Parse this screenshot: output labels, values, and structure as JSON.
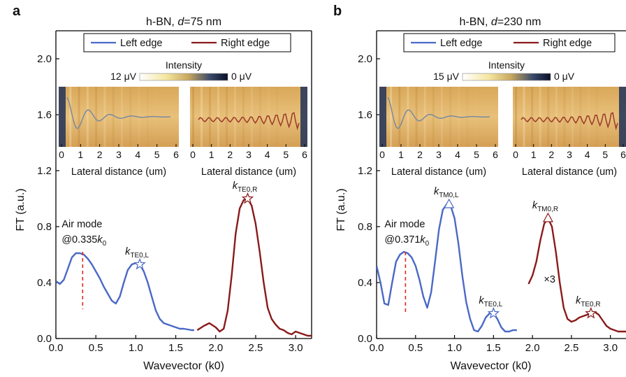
{
  "figure": {
    "panels": [
      {
        "letter": "a",
        "title_main": "h-BN, ",
        "title_var": "d",
        "title_value": "=75 nm"
      },
      {
        "letter": "b",
        "title_main": "h-BN, ",
        "title_var": "d",
        "title_value": "=230 nm"
      }
    ]
  },
  "chart_data": [
    {
      "type": "line",
      "xlabel": "Wavevector (k0)",
      "ylabel": "FT (a.u.)",
      "xlim": [
        0.0,
        3.2
      ],
      "ylim": [
        0.0,
        2.2
      ],
      "x_ticks": [
        "0.0",
        "0.5",
        "1.0",
        "1.5",
        "2.0",
        "2.5",
        "3.0"
      ],
      "y_ticks": [
        "0.0",
        "0.4",
        "0.8",
        "1.2",
        "1.6",
        "2.0"
      ],
      "legend": {
        "placement": "top",
        "entries": [
          "Left edge",
          "Right edge"
        ]
      },
      "series": [
        {
          "name": "Left edge",
          "color": "#4a69c6",
          "x": [
            0.0,
            0.05,
            0.1,
            0.15,
            0.2,
            0.25,
            0.3,
            0.35,
            0.4,
            0.45,
            0.5,
            0.55,
            0.6,
            0.65,
            0.7,
            0.75,
            0.8,
            0.85,
            0.9,
            0.95,
            1.0,
            1.05,
            1.1,
            1.15,
            1.2,
            1.25,
            1.3,
            1.35,
            1.4,
            1.45,
            1.5,
            1.55,
            1.6,
            1.65,
            1.7,
            1.73
          ],
          "y": [
            0.41,
            0.39,
            0.42,
            0.5,
            0.58,
            0.61,
            0.61,
            0.6,
            0.57,
            0.53,
            0.48,
            0.43,
            0.37,
            0.32,
            0.27,
            0.25,
            0.3,
            0.4,
            0.49,
            0.53,
            0.54,
            0.53,
            0.48,
            0.4,
            0.3,
            0.2,
            0.14,
            0.11,
            0.1,
            0.09,
            0.08,
            0.07,
            0.07,
            0.065,
            0.06,
            0.06
          ]
        },
        {
          "name": "Right edge",
          "color": "#8a1a1a",
          "x": [
            1.77,
            1.85,
            1.92,
            2.0,
            2.05,
            2.1,
            2.15,
            2.2,
            2.25,
            2.3,
            2.35,
            2.4,
            2.45,
            2.5,
            2.55,
            2.6,
            2.65,
            2.7,
            2.75,
            2.8,
            2.85,
            2.9,
            2.95,
            3.0,
            3.05,
            3.1,
            3.15,
            3.2
          ],
          "y": [
            0.06,
            0.09,
            0.11,
            0.08,
            0.05,
            0.07,
            0.2,
            0.45,
            0.75,
            0.93,
            0.99,
            1.0,
            0.95,
            0.82,
            0.62,
            0.4,
            0.22,
            0.14,
            0.1,
            0.07,
            0.06,
            0.04,
            0.03,
            0.05,
            0.04,
            0.03,
            0.02,
            0.02
          ]
        }
      ],
      "markers": [
        {
          "shape": "star",
          "x": 1.05,
          "y": 0.53,
          "color": "#4a69c6",
          "label_main": "k",
          "label_sub": "TE0,L"
        },
        {
          "shape": "star",
          "x": 2.4,
          "y": 1.0,
          "color": "#8a1a1a",
          "label_main": "k",
          "label_sub": "TE0,R"
        }
      ],
      "annotation": {
        "line1": "Air mode",
        "line2_pre": "@0.335",
        "line2_k": "k",
        "line2_sub": "0",
        "x": 0.335,
        "y_top": 0.62,
        "y_bottom": 0.21
      },
      "inset": {
        "colorbar_label": "Intensity",
        "colorbar_max": "12 μV",
        "colorbar_min": "0 μV",
        "xlabel_left": "Lateral distance (um)",
        "xlabel_right": "Lateral distance (um)",
        "ticks": [
          "0",
          "1",
          "2",
          "3",
          "4",
          "5",
          "6"
        ]
      }
    },
    {
      "type": "line",
      "xlabel": "Wavevector (k0)",
      "ylabel": "FT (a.u.)",
      "xlim": [
        0.0,
        3.2
      ],
      "ylim": [
        0.0,
        2.2
      ],
      "x_ticks": [
        "0.0",
        "0.5",
        "1.0",
        "1.5",
        "2.0",
        "2.5",
        "3.0"
      ],
      "y_ticks": [
        "0.0",
        "0.4",
        "0.8",
        "1.2",
        "1.6",
        "2.0"
      ],
      "legend": {
        "placement": "top",
        "entries": [
          "Left edge",
          "Right edge"
        ]
      },
      "series": [
        {
          "name": "Left edge",
          "color": "#4a69c6",
          "x": [
            0.0,
            0.05,
            0.1,
            0.15,
            0.2,
            0.25,
            0.3,
            0.35,
            0.4,
            0.45,
            0.5,
            0.55,
            0.6,
            0.65,
            0.7,
            0.75,
            0.8,
            0.85,
            0.9,
            0.93,
            0.95,
            1.0,
            1.05,
            1.1,
            1.15,
            1.2,
            1.25,
            1.3,
            1.35,
            1.4,
            1.45,
            1.5,
            1.55,
            1.6,
            1.65,
            1.7,
            1.75,
            1.8
          ],
          "y": [
            0.52,
            0.4,
            0.25,
            0.24,
            0.4,
            0.55,
            0.6,
            0.62,
            0.61,
            0.58,
            0.52,
            0.42,
            0.3,
            0.22,
            0.33,
            0.55,
            0.78,
            0.92,
            0.96,
            0.96,
            0.95,
            0.86,
            0.68,
            0.45,
            0.26,
            0.14,
            0.06,
            0.05,
            0.09,
            0.15,
            0.18,
            0.18,
            0.14,
            0.08,
            0.05,
            0.05,
            0.06,
            0.06
          ]
        },
        {
          "name": "Right edge",
          "color": "#8a1a1a",
          "x": [
            1.95,
            2.0,
            2.05,
            2.1,
            2.15,
            2.2,
            2.25,
            2.3,
            2.35,
            2.4,
            2.45,
            2.5,
            2.55,
            2.6,
            2.65,
            2.7,
            2.75,
            2.8,
            2.85,
            2.9,
            2.95,
            3.0,
            3.05,
            3.1,
            3.15,
            3.2
          ],
          "y": [
            0.39,
            0.45,
            0.55,
            0.7,
            0.82,
            0.86,
            0.8,
            0.62,
            0.4,
            0.22,
            0.14,
            0.12,
            0.13,
            0.15,
            0.16,
            0.17,
            0.18,
            0.19,
            0.17,
            0.13,
            0.09,
            0.07,
            0.06,
            0.05,
            0.05,
            0.05
          ]
        }
      ],
      "markers": [
        {
          "shape": "triangle",
          "x": 0.93,
          "y": 0.96,
          "color": "#4a69c6",
          "label_main": "k",
          "label_sub": "TM0,L"
        },
        {
          "shape": "star",
          "x": 1.5,
          "y": 0.18,
          "color": "#4a69c6",
          "label_main": "k",
          "label_sub": "TE0,L"
        },
        {
          "shape": "triangle",
          "x": 2.2,
          "y": 0.86,
          "color": "#8a1a1a",
          "label_main": "k",
          "label_sub": "TM0,R"
        },
        {
          "shape": "star",
          "x": 2.75,
          "y": 0.18,
          "color": "#8a1a1a",
          "label_main": "k",
          "label_sub": "TE0,R"
        }
      ],
      "annotation": {
        "line1": "Air mode",
        "line2_pre": "@0.371",
        "line2_k": "k",
        "line2_sub": "0",
        "x": 0.371,
        "y_top": 0.62,
        "y_bottom": 0.19
      },
      "multiplier_label": "×3",
      "inset": {
        "colorbar_label": "Intensity",
        "colorbar_max": "15 μV",
        "colorbar_min": "0 μV",
        "xlabel_left": "Lateral distance (um)",
        "xlabel_right": "Lateral distance (um)",
        "ticks": [
          "0",
          "1",
          "2",
          "3",
          "4",
          "5",
          "6"
        ]
      }
    }
  ]
}
